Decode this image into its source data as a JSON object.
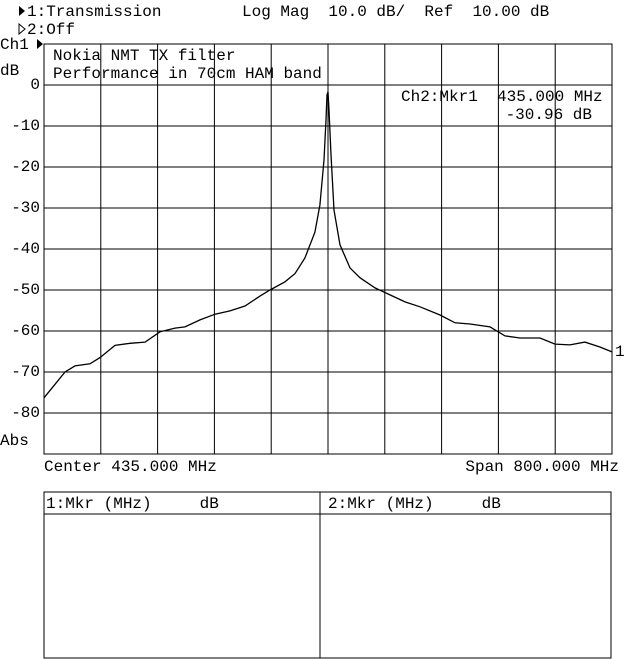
{
  "header": {
    "channel1": "1:Transmission",
    "format": "Log Mag  10.0 dB/  Ref  10.00 dB",
    "channel2": "2:Off"
  },
  "chart_data": {
    "type": "line",
    "annotations": [
      "Nokia NMT TX filter",
      "Performance in 70cm HAM band"
    ],
    "y_axis_label": [
      "Ch1",
      "dB"
    ],
    "y_axis_mode": "Abs",
    "marker_readout": [
      "Ch2:Mkr1  435.000 MHz",
      "-30.96 dB"
    ],
    "center_label": "Center 435.000 MHz",
    "span_label": "Span 800.000 MHz",
    "trace_end_label": "1",
    "color": "#000000",
    "x": [
      35,
      50.5,
      64.6,
      78.7,
      99.8,
      113.9,
      135,
      156.1,
      177.3,
      198.4,
      219.5,
      233.6,
      254.7,
      275.8,
      297,
      318.1,
      339.2,
      353.3,
      374.4,
      388.5,
      402.5,
      416.5,
      423.6,
      429.4,
      432.2,
      433.6,
      435,
      436.4,
      439.2,
      443.5,
      451.9,
      466,
      480,
      501.2,
      522.3,
      543.5,
      564.6,
      592.7,
      613.9,
      635,
      663.2,
      684.3,
      705.4,
      733.6,
      754.7,
      775.8,
      796.9,
      818,
      835
    ],
    "values": [
      -76.3,
      -73,
      -70,
      -68.5,
      -68,
      -66.5,
      -63.5,
      -63,
      -62.7,
      -60.2,
      -59.3,
      -59,
      -57.3,
      -55.9,
      -55.1,
      -53.9,
      -51.5,
      -50,
      -48,
      -46,
      -42.2,
      -35.9,
      -29.3,
      -18.3,
      -8.5,
      -2.4,
      -1.7,
      -6.1,
      -17,
      -30.5,
      -39,
      -44.6,
      -47,
      -49.5,
      -51.2,
      -52.9,
      -54.1,
      -56.1,
      -58,
      -58.3,
      -59,
      -61.2,
      -61.7,
      -61.7,
      -63.2,
      -63.4,
      -62.7,
      -63.9,
      -65.1
    ],
    "xlim": [
      35,
      835
    ],
    "xticks": [
      35,
      115,
      195,
      275,
      355,
      435,
      515,
      595,
      675,
      755,
      835
    ],
    "ylim": [
      -90,
      10
    ],
    "yticks": [
      0,
      -10,
      -20,
      -30,
      -40,
      -50,
      -60,
      -70,
      -80
    ],
    "grid": true
  },
  "marker_table": {
    "headers": [
      "1:Mkr (MHz)     dB",
      "2:Mkr (MHz)     dB"
    ]
  }
}
